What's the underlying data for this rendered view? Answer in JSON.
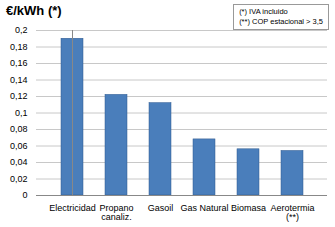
{
  "chart_data": {
    "type": "bar",
    "title": "€/kWh (*)",
    "annotations": [
      "(*) IVA incluido",
      "(**) COP estacional > 3,5"
    ],
    "categories": [
      "Electricidad",
      "Propano\ncanaliz.",
      "Gasoil",
      "Gas Natural",
      "Biomasa",
      "Aerotermia\n(**)"
    ],
    "values": [
      0.19,
      0.122,
      0.112,
      0.068,
      0.056,
      0.054
    ],
    "color": "#4a7ebb",
    "ylim": [
      0,
      0.2
    ],
    "yticks": [
      0,
      {
        "value": 0.02,
        "label": "0,02"
      },
      {
        "value": 0.04,
        "label": "0,04"
      },
      {
        "value": 0.06,
        "label": "0,06"
      },
      {
        "value": 0.08,
        "label": "0,08"
      },
      {
        "value": 0.1,
        "label": "0,1"
      },
      {
        "value": 0.12,
        "label": "0,12"
      },
      {
        "value": 0.14,
        "label": "0,14"
      },
      {
        "value": 0.16,
        "label": "0,16"
      },
      {
        "value": 0.18,
        "label": "0,18"
      },
      {
        "value": 0.2,
        "label": "0,2"
      }
    ],
    "grid": true
  }
}
